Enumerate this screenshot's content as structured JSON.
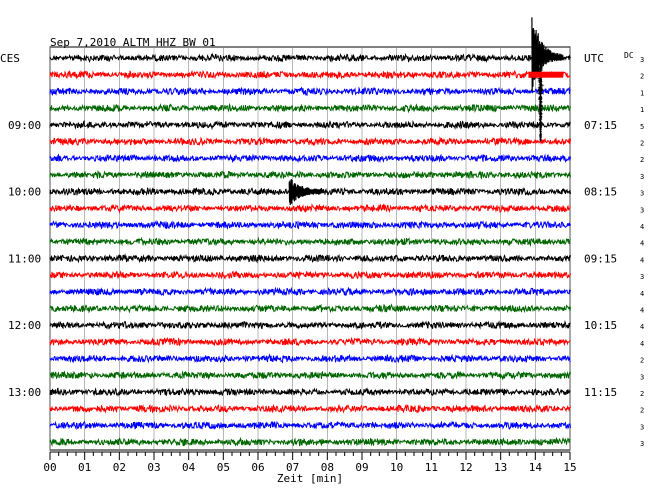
{
  "chart_data": {
    "type": "line",
    "title": "Sep 7,2010   ALTM HHZ BW 01",
    "left_timezone": "CES",
    "right_timezone": "UTC",
    "dc_label": "DC",
    "xlabel": "Zeit [min]",
    "xlim": [
      0,
      15
    ],
    "x_ticks": [
      "00",
      "01",
      "02",
      "03",
      "04",
      "05",
      "06",
      "07",
      "08",
      "09",
      "10",
      "11",
      "12",
      "13",
      "14",
      "15"
    ],
    "trace_count": 24,
    "trace_colors": [
      "#000000",
      "#ff0000",
      "#0000ff",
      "#006600"
    ],
    "grid": true,
    "left_time_labels": [
      {
        "trace": 4,
        "label": "09:00"
      },
      {
        "trace": 8,
        "label": "10:00"
      },
      {
        "trace": 12,
        "label": "11:00"
      },
      {
        "trace": 16,
        "label": "12:00"
      },
      {
        "trace": 20,
        "label": "13:00"
      }
    ],
    "right_time_labels": [
      {
        "trace": 0,
        "label": "UTC"
      },
      {
        "trace": 4,
        "label": "07:15"
      },
      {
        "trace": 8,
        "label": "08:15"
      },
      {
        "trace": 12,
        "label": "09:15"
      },
      {
        "trace": 16,
        "label": "10:15"
      },
      {
        "trace": 20,
        "label": "11:15"
      }
    ],
    "right_scale_values": [
      "3",
      "2",
      "1",
      "1",
      "5",
      "2",
      "2",
      "3",
      "3",
      "3",
      "4",
      "4",
      "4",
      "3",
      "4",
      "4",
      "4",
      "4",
      "2",
      "3",
      "2",
      "2",
      "3",
      "3"
    ],
    "events": [
      {
        "trace": 0,
        "start_min": 13.9,
        "end_min": 14.8,
        "amplitude": "large"
      },
      {
        "trace": 8,
        "start_min": 6.9,
        "end_min": 7.9,
        "amplitude": "medium"
      }
    ]
  }
}
